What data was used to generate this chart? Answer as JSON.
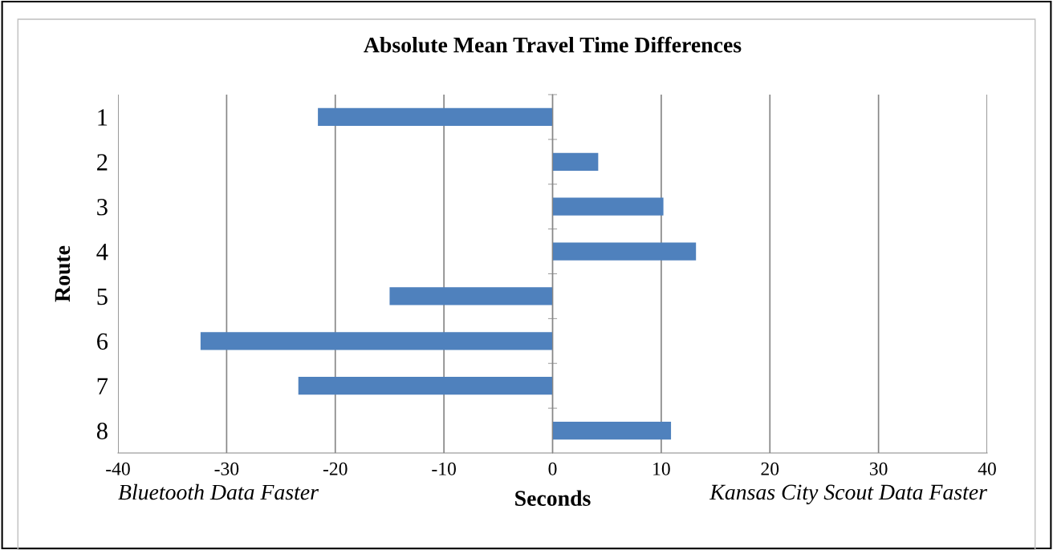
{
  "chart_data": {
    "type": "bar",
    "orientation": "horizontal",
    "title": "Absolute Mean Travel Time Differences",
    "xlabel": "Seconds",
    "ylabel": "Route",
    "categories": [
      "1",
      "2",
      "3",
      "4",
      "5",
      "6",
      "7",
      "8"
    ],
    "values": [
      -21.6,
      4.2,
      10.2,
      13.2,
      -15.0,
      -32.4,
      -23.4,
      10.9
    ],
    "color": "#4f81bd",
    "xlim": [
      -40,
      40
    ],
    "xticks": [
      -40,
      -30,
      -20,
      -10,
      0,
      10,
      20,
      30,
      40
    ],
    "grid": "x",
    "annotations": [
      "Bluetooth Data Faster",
      "Kansas City Scout Data Faster"
    ]
  }
}
